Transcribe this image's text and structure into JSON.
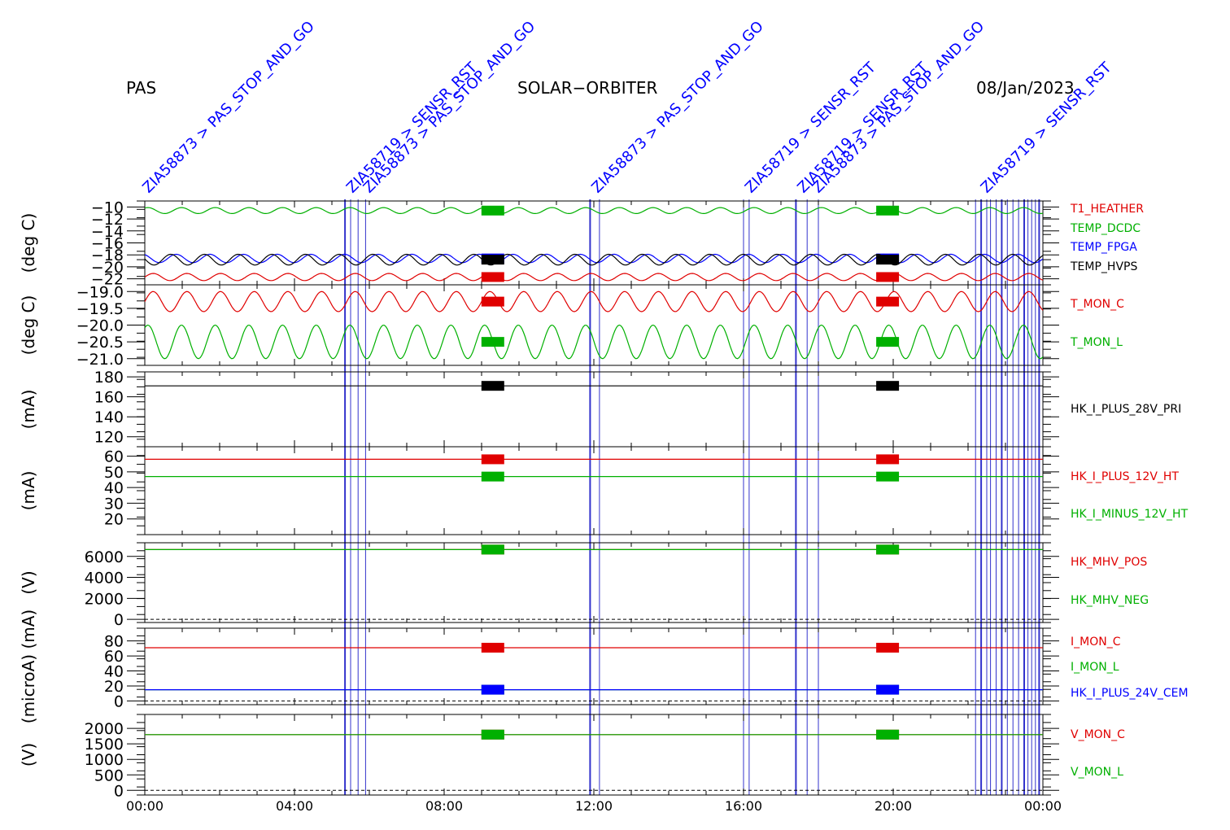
{
  "header": {
    "left": "PAS",
    "center": "SOLAR−ORBITER",
    "right": "08/Jan/2023"
  },
  "colors": {
    "red": "#e00000",
    "green": "#00b000",
    "blue": "#0000ff",
    "black": "#000000",
    "event": "#3333cc"
  },
  "chart_data": {
    "type": "line",
    "x_ticks": [
      "00:00",
      "04:00",
      "08:00",
      "12:00",
      "16:00",
      "20:00",
      "00:00"
    ],
    "x_range_hours": [
      0,
      24
    ],
    "annotations": [
      {
        "hour": 0.1,
        "text": "ZIA58873 > PAS_STOP_AND_GO"
      },
      {
        "hour": 5.55,
        "text": "ZIA58719 > SENSR_RST"
      },
      {
        "hour": 6.0,
        "text": "ZIA58873 > PAS_STOP_AND_GO"
      },
      {
        "hour": 12.1,
        "text": "ZIA58873 > PAS_STOP_AND_GO"
      },
      {
        "hour": 16.2,
        "text": "ZIA58719 > SENSR_RST"
      },
      {
        "hour": 17.6,
        "text": "ZIA58719 > SENSR_RST"
      },
      {
        "hour": 18.0,
        "text": "ZIA58873 > PAS_STOP_AND_GO"
      },
      {
        "hour": 22.5,
        "text": "ZIA58719 > SENSR_RST"
      }
    ],
    "panels": [
      {
        "ylabel": "(deg C)",
        "ylim": [
          -23,
          -9
        ],
        "ticks": [
          {
            "v": -10,
            "t": "−10"
          },
          {
            "v": -12,
            "t": "−12"
          },
          {
            "v": -14,
            "t": "−14"
          },
          {
            "v": -16,
            "t": "−16"
          },
          {
            "v": -18,
            "t": "−18"
          },
          {
            "v": -20,
            "t": "−20"
          },
          {
            "v": -22,
            "t": "−22"
          }
        ],
        "series": [
          {
            "name": "T1_HEATHER",
            "color": "red",
            "base": -21.7,
            "amp": 0.6
          },
          {
            "name": "TEMP_DCDC",
            "color": "green",
            "base": -10.6,
            "amp": 0.5
          },
          {
            "name": "TEMP_FPGA",
            "color": "blue",
            "base": -18.6,
            "amp": 0.7
          },
          {
            "name": "TEMP_HVPS",
            "color": "black",
            "base": -18.8,
            "amp": 0.9
          }
        ]
      },
      {
        "ylabel": "(deg C)",
        "ylim": [
          -21.2,
          -18.8
        ],
        "ticks": [
          {
            "v": -19.0,
            "t": "−19.0"
          },
          {
            "v": -19.5,
            "t": "−19.5"
          },
          {
            "v": -20.0,
            "t": "−20.0"
          },
          {
            "v": -20.5,
            "t": "−20.5"
          },
          {
            "v": -21.0,
            "t": "−21.0"
          }
        ],
        "series": [
          {
            "name": "T_MON_C",
            "color": "red",
            "base": -19.3,
            "amp": 0.3
          },
          {
            "name": "T_MON_L",
            "color": "green",
            "base": -20.5,
            "amp": 0.5
          }
        ]
      },
      {
        "ylabel": "(mA)",
        "ylim": [
          110,
          185
        ],
        "ticks": [
          {
            "v": 180,
            "t": "180"
          },
          {
            "v": 160,
            "t": "160"
          },
          {
            "v": 140,
            "t": "140"
          },
          {
            "v": 120,
            "t": "120"
          }
        ],
        "series": [
          {
            "name": "HK_I_PLUS_28V_PRI",
            "color": "black",
            "base": 171,
            "amp": 0
          }
        ]
      },
      {
        "ylabel": "(mA)",
        "ylim": [
          10,
          66
        ],
        "ticks": [
          {
            "v": 60,
            "t": "60"
          },
          {
            "v": 50,
            "t": "50"
          },
          {
            "v": 40,
            "t": "40"
          },
          {
            "v": 30,
            "t": "30"
          },
          {
            "v": 20,
            "t": "20"
          }
        ],
        "series": [
          {
            "name": "HK_I_PLUS_12V_HT",
            "color": "red",
            "base": 58,
            "amp": 0
          },
          {
            "name": "HK_I_MINUS_12V_HT",
            "color": "green",
            "base": 47,
            "amp": 0
          }
        ]
      },
      {
        "ylabel": "(V)",
        "ylim": [
          -300,
          7300
        ],
        "ticks": [
          {
            "v": 6000,
            "t": "6000"
          },
          {
            "v": 4000,
            "t": "4000"
          },
          {
            "v": 2000,
            "t": "2000"
          },
          {
            "v": 0,
            "t": "0"
          }
        ],
        "series": [
          {
            "name": "HK_MHV_POS",
            "color": "red",
            "base": 6650,
            "amp": 0
          },
          {
            "name": "HK_MHV_NEG",
            "color": "green",
            "base": 6650,
            "amp": 0
          }
        ]
      },
      {
        "ylabel": "(microA) (mA)",
        "ylim": [
          -5,
          97
        ],
        "ticks": [
          {
            "v": 80,
            "t": "80"
          },
          {
            "v": 60,
            "t": "60"
          },
          {
            "v": 40,
            "t": "40"
          },
          {
            "v": 20,
            "t": "20"
          },
          {
            "v": 0,
            "t": "0"
          }
        ],
        "series": [
          {
            "name": "I_MON_C",
            "color": "red",
            "base": 71,
            "amp": 0
          },
          {
            "name": "I_MON_L",
            "color": "green",
            "base": 15,
            "amp": 0
          },
          {
            "name": "HK_I_PLUS_24V_CEM",
            "color": "blue",
            "base": 15,
            "amp": 0
          }
        ]
      },
      {
        "ylabel": "(V)",
        "ylim": [
          -150,
          2450
        ],
        "ticks": [
          {
            "v": 2000,
            "t": "2000"
          },
          {
            "v": 1500,
            "t": "1500"
          },
          {
            "v": 1000,
            "t": "1000"
          },
          {
            "v": 500,
            "t": "500"
          },
          {
            "v": 0,
            "t": "0"
          }
        ],
        "series": [
          {
            "name": "V_MON_C",
            "color": "red",
            "base": 1800,
            "amp": 0
          },
          {
            "name": "V_MON_L",
            "color": "green",
            "base": 1800,
            "amp": 0
          }
        ]
      }
    ]
  }
}
